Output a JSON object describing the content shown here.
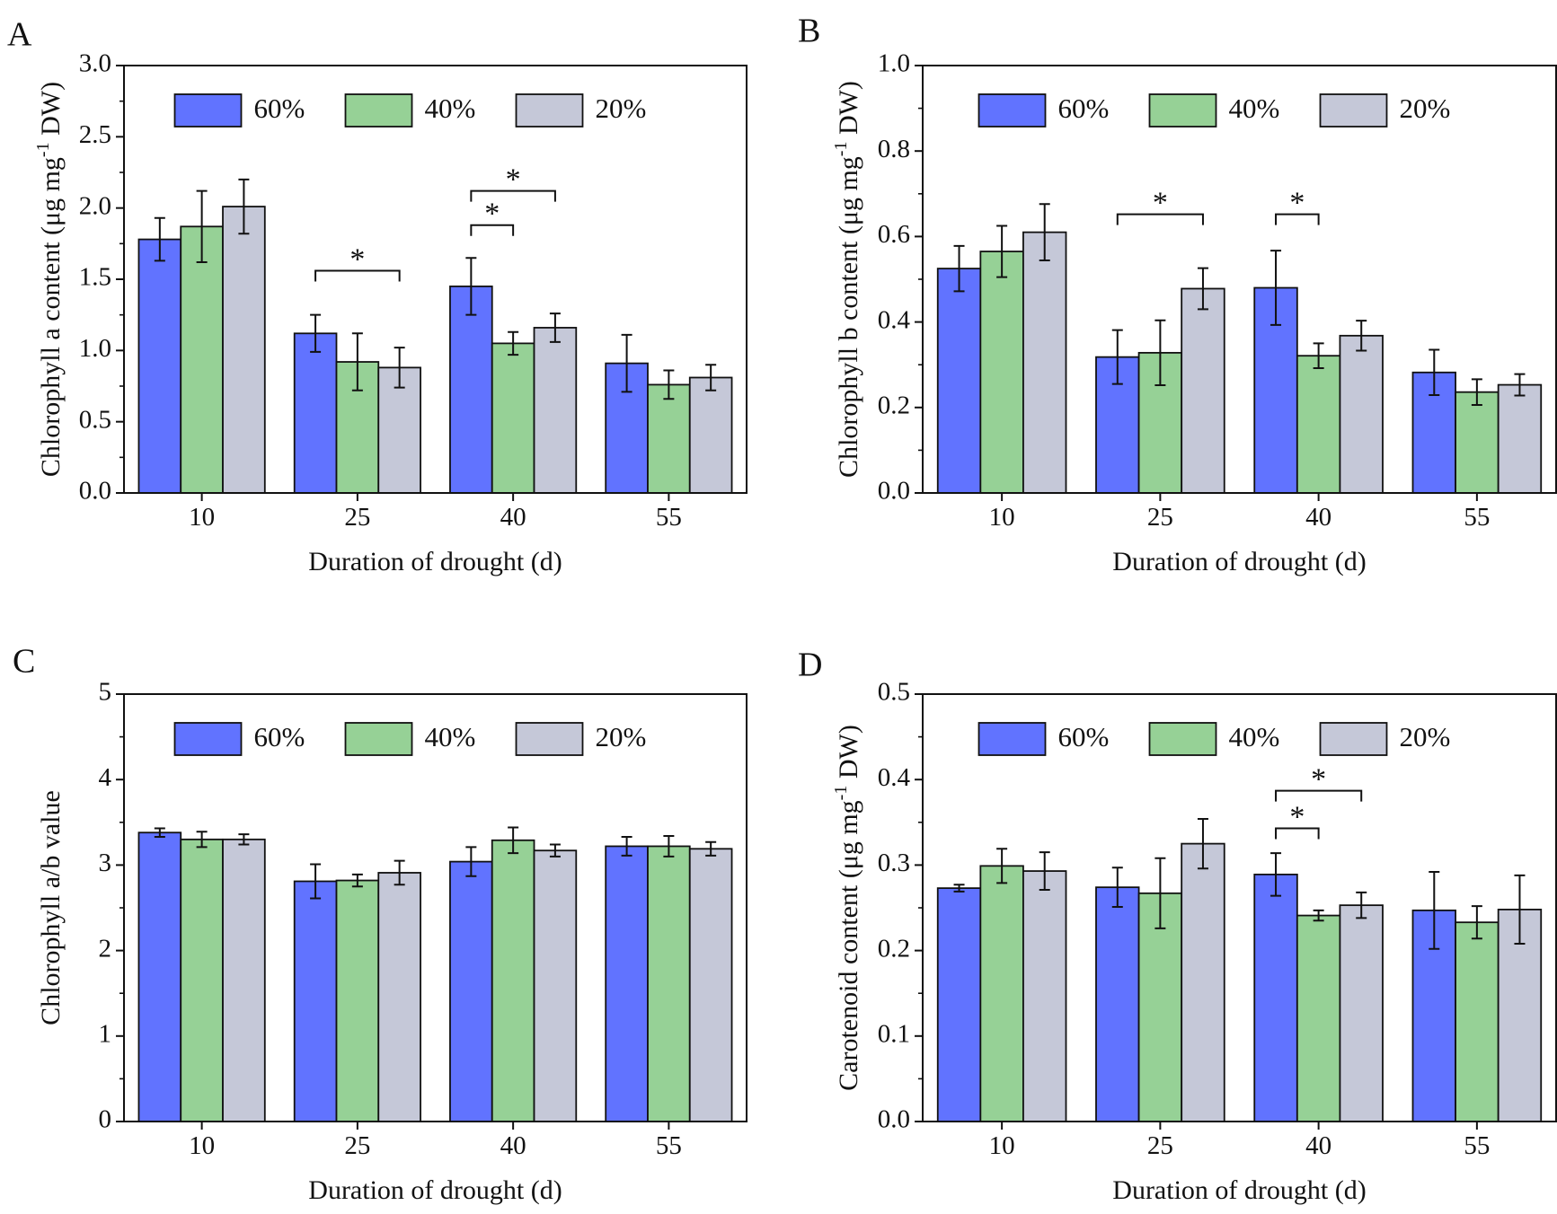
{
  "figure": {
    "colors": {
      "s60": "#6173ff",
      "s40": "#96d196",
      "s20": "#c5c8d8",
      "axis": "#111111"
    },
    "legend_labels": [
      "60%",
      "40%",
      "20%"
    ]
  },
  "chart_data": [
    {
      "panel": "A",
      "type": "bar",
      "xlabel": "Duration of drought (d)",
      "ylabel_parts": [
        "Chlorophyll a content (μg mg",
        "-1",
        " DW)"
      ],
      "categories": [
        "10",
        "25",
        "40",
        "55"
      ],
      "ylim": [
        0,
        3.0
      ],
      "yticks": [
        "0.0",
        "0.5",
        "1.0",
        "1.5",
        "2.0",
        "2.5",
        "3.0"
      ],
      "legend_position": "top-center",
      "series": [
        {
          "name": "60%",
          "values": [
            1.78,
            1.12,
            1.45,
            0.91
          ],
          "errors": [
            0.15,
            0.13,
            0.2,
            0.2
          ]
        },
        {
          "name": "40%",
          "values": [
            1.87,
            0.92,
            1.05,
            0.76
          ],
          "errors": [
            0.25,
            0.2,
            0.08,
            0.1
          ]
        },
        {
          "name": "20%",
          "values": [
            2.01,
            0.88,
            1.16,
            0.81
          ],
          "errors": [
            0.19,
            0.14,
            0.1,
            0.09
          ]
        }
      ],
      "significance": [
        {
          "category": 1,
          "from": 0,
          "to": 2,
          "y": 1.56,
          "label": "*"
        },
        {
          "category": 2,
          "from": 0,
          "to": 1,
          "y": 1.88,
          "label": "*"
        },
        {
          "category": 2,
          "from": 0,
          "to": 2,
          "y": 2.12,
          "label": "*"
        }
      ]
    },
    {
      "panel": "B",
      "type": "bar",
      "xlabel": "Duration of drought (d)",
      "ylabel_parts": [
        "Chlorophyll b content (μg mg",
        "-1",
        " DW)"
      ],
      "categories": [
        "10",
        "25",
        "40",
        "55"
      ],
      "ylim": [
        0,
        1.0
      ],
      "yticks": [
        "0.0",
        "0.2",
        "0.4",
        "0.6",
        "0.8",
        "1.0"
      ],
      "legend_position": "top-center",
      "series": [
        {
          "name": "60%",
          "values": [
            0.525,
            0.318,
            0.48,
            0.282
          ],
          "errors": [
            0.053,
            0.063,
            0.087,
            0.053
          ]
        },
        {
          "name": "40%",
          "values": [
            0.565,
            0.328,
            0.321,
            0.236
          ],
          "errors": [
            0.06,
            0.076,
            0.029,
            0.03
          ]
        },
        {
          "name": "20%",
          "values": [
            0.61,
            0.478,
            0.368,
            0.253
          ],
          "errors": [
            0.066,
            0.048,
            0.035,
            0.025
          ]
        }
      ],
      "significance": [
        {
          "category": 1,
          "from": 0,
          "to": 2,
          "y": 0.652,
          "label": "*"
        },
        {
          "category": 2,
          "from": 0,
          "to": 1,
          "y": 0.652,
          "label": "*"
        }
      ]
    },
    {
      "panel": "C",
      "type": "bar",
      "xlabel": "Duration of drought (d)",
      "ylabel_parts": [
        "Chlorophyll a/b value"
      ],
      "categories": [
        "10",
        "25",
        "40",
        "55"
      ],
      "ylim": [
        0,
        5
      ],
      "yticks": [
        "0",
        "1",
        "2",
        "3",
        "4",
        "5"
      ],
      "legend_position": "top-center",
      "series": [
        {
          "name": "60%",
          "values": [
            3.38,
            2.81,
            3.04,
            3.22
          ],
          "errors": [
            0.05,
            0.2,
            0.17,
            0.11
          ]
        },
        {
          "name": "40%",
          "values": [
            3.3,
            2.82,
            3.29,
            3.22
          ],
          "errors": [
            0.09,
            0.07,
            0.15,
            0.12
          ]
        },
        {
          "name": "20%",
          "values": [
            3.3,
            2.91,
            3.17,
            3.19
          ],
          "errors": [
            0.06,
            0.14,
            0.07,
            0.08
          ]
        }
      ],
      "significance": []
    },
    {
      "panel": "D",
      "type": "bar",
      "xlabel": "Duration of drought (d)",
      "ylabel_parts": [
        "Carotenoid content (μg mg",
        "-1",
        " DW)"
      ],
      "categories": [
        "10",
        "25",
        "40",
        "55"
      ],
      "ylim": [
        0,
        0.5
      ],
      "yticks": [
        "0.0",
        "0.1",
        "0.2",
        "0.3",
        "0.4",
        "0.5"
      ],
      "legend_position": "top-center",
      "series": [
        {
          "name": "60%",
          "values": [
            0.273,
            0.274,
            0.289,
            0.247
          ],
          "errors": [
            0.004,
            0.023,
            0.025,
            0.045
          ]
        },
        {
          "name": "40%",
          "values": [
            0.299,
            0.267,
            0.241,
            0.233
          ],
          "errors": [
            0.02,
            0.041,
            0.006,
            0.019
          ]
        },
        {
          "name": "20%",
          "values": [
            0.293,
            0.325,
            0.253,
            0.248
          ],
          "errors": [
            0.022,
            0.029,
            0.015,
            0.04
          ]
        }
      ],
      "significance": [
        {
          "category": 2,
          "from": 0,
          "to": 1,
          "y": 0.343,
          "label": "*"
        },
        {
          "category": 2,
          "from": 0,
          "to": 2,
          "y": 0.387,
          "label": "*"
        }
      ]
    }
  ]
}
